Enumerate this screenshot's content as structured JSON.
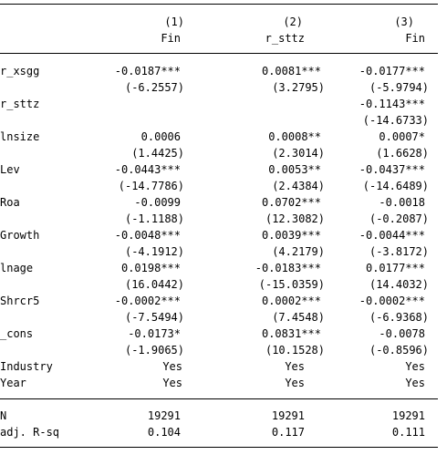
{
  "header": {
    "numbers": [
      "(1)",
      "(2)",
      "(3)"
    ],
    "depvars": [
      "Fin",
      "r_sttz",
      "Fin"
    ]
  },
  "rows": [
    {
      "label": "r_xsgg",
      "coef": [
        "-0.0187***",
        "0.0081***",
        "-0.0177***"
      ],
      "t": [
        "(-6.2557)",
        "(3.2795)",
        "(-5.9794)"
      ]
    },
    {
      "label": "r_sttz",
      "coef": [
        "",
        "",
        "-0.1143***"
      ],
      "t": [
        "",
        "",
        "(-14.6733)"
      ]
    },
    {
      "label": "lnsize",
      "coef": [
        "0.0006",
        "0.0008**",
        "0.0007*"
      ],
      "t": [
        "(1.4425)",
        "(2.3014)",
        "(1.6628)"
      ]
    },
    {
      "label": "Lev",
      "coef": [
        "-0.0443***",
        "0.0053**",
        "-0.0437***"
      ],
      "t": [
        "(-14.7786)",
        "(2.4384)",
        "(-14.6489)"
      ]
    },
    {
      "label": "Roa",
      "coef": [
        "-0.0099",
        "0.0702***",
        "-0.0018"
      ],
      "t": [
        "(-1.1188)",
        "(12.3082)",
        "(-0.2087)"
      ]
    },
    {
      "label": "Growth",
      "coef": [
        "-0.0048***",
        "0.0039***",
        "-0.0044***"
      ],
      "t": [
        "(-4.1912)",
        "(4.2179)",
        "(-3.8172)"
      ]
    },
    {
      "label": "lnage",
      "coef": [
        "0.0198***",
        "-0.0183***",
        "0.0177***"
      ],
      "t": [
        "(16.0442)",
        "(-15.0359)",
        "(14.4032)"
      ]
    },
    {
      "label": "Shrcr5",
      "coef": [
        "-0.0002***",
        "0.0002***",
        "-0.0002***"
      ],
      "t": [
        "(-7.5494)",
        "(7.4548)",
        "(-6.9368)"
      ]
    },
    {
      "label": "_cons",
      "coef": [
        "-0.0173*",
        "0.0831***",
        "-0.0078"
      ],
      "t": [
        "(-1.9065)",
        "(10.1528)",
        "(-0.8596)"
      ]
    }
  ],
  "controls": [
    {
      "label": "Industry",
      "values": [
        "Yes",
        "Yes",
        "Yes"
      ]
    },
    {
      "label": "Year",
      "values": [
        "Yes",
        "Yes",
        "Yes"
      ]
    }
  ],
  "stats": [
    {
      "label": "N",
      "values": [
        "19291",
        "19291",
        "19291"
      ]
    },
    {
      "label": "adj. R-sq",
      "values": [
        "0.104",
        "0.117",
        "0.111"
      ]
    }
  ]
}
